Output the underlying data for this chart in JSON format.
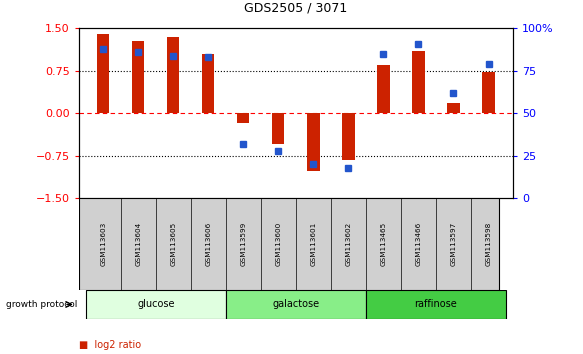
{
  "title": "GDS2505 / 3071",
  "samples": [
    "GSM113603",
    "GSM113604",
    "GSM113605",
    "GSM113606",
    "GSM113599",
    "GSM113600",
    "GSM113601",
    "GSM113602",
    "GSM113465",
    "GSM113466",
    "GSM113597",
    "GSM113598"
  ],
  "log2_ratio": [
    1.4,
    1.28,
    1.35,
    1.05,
    -0.18,
    -0.55,
    -1.02,
    -0.82,
    0.85,
    1.1,
    0.18,
    0.72
  ],
  "percentile_rank": [
    88,
    86,
    84,
    83,
    32,
    28,
    20,
    18,
    85,
    91,
    62,
    79
  ],
  "groups": [
    {
      "label": "glucose",
      "start": 0,
      "end": 3,
      "color": "#e0ffe0"
    },
    {
      "label": "galactose",
      "start": 4,
      "end": 7,
      "color": "#88ee88"
    },
    {
      "label": "raffinose",
      "start": 8,
      "end": 11,
      "color": "#44cc44"
    }
  ],
  "bar_color": "#cc2200",
  "dot_color": "#2255cc",
  "ylim_left": [
    -1.5,
    1.5
  ],
  "ylim_right": [
    0,
    100
  ],
  "y_left_ticks": [
    -1.5,
    -0.75,
    0,
    0.75,
    1.5
  ],
  "y_right_ticks": [
    0,
    25,
    50,
    75,
    100
  ],
  "y_right_labels": [
    "0",
    "25",
    "50",
    "75",
    "100%"
  ],
  "background_color": "#ffffff",
  "bar_width": 0.35,
  "dot_size": 5,
  "label_bg": "#d0d0d0"
}
